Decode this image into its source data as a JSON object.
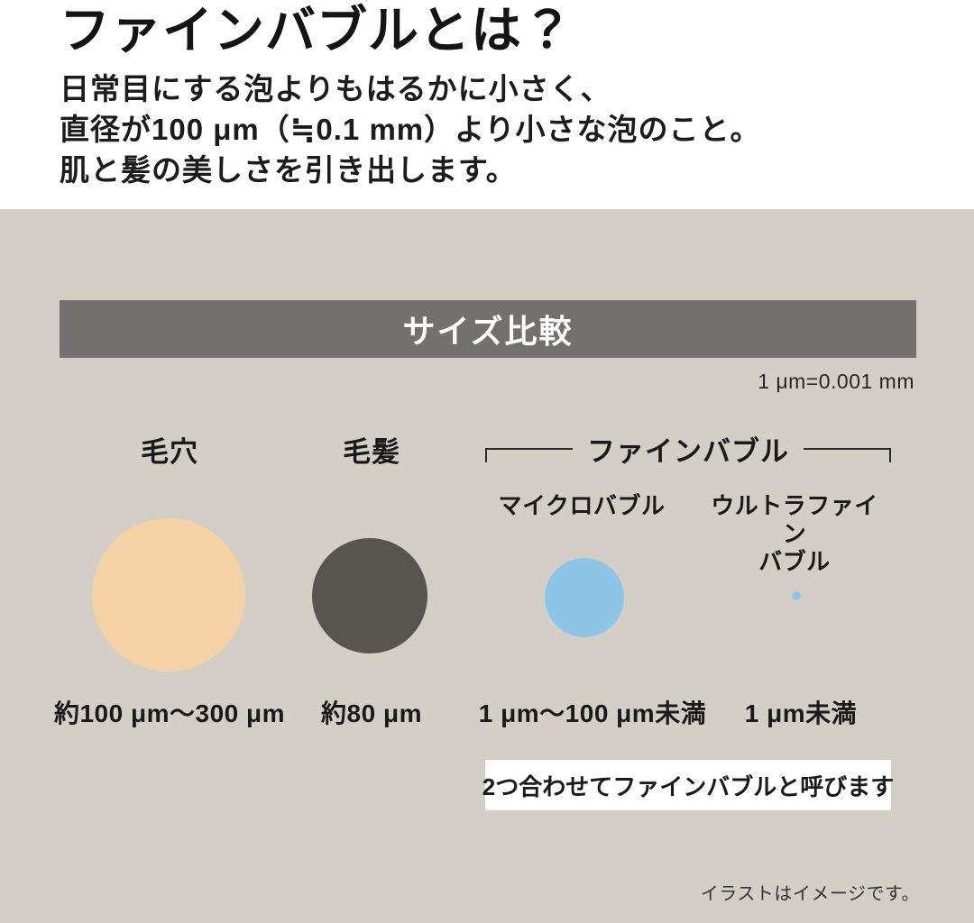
{
  "header": {
    "title": "ファインバブルとは？",
    "description_lines": [
      "日常目にする泡よりもはるかに小さく、",
      "直径が100 μm（≒0.1 mm）より小さな泡のこと。",
      "肌と髪の美しさを引き出します。"
    ]
  },
  "comparison": {
    "section_title": "サイズ比較",
    "unit_note": "1 μm=0.001 mm",
    "fine_bubble_group_label": "ファインバブル",
    "items": [
      {
        "label": "毛穴",
        "size_label": "約100 μm〜300 μm",
        "circle_color": "#f4d2a6",
        "relative_diameter": "largest"
      },
      {
        "label": "毛髪",
        "size_label": "約80 μm",
        "circle_color": "#585450",
        "relative_diameter": "large"
      },
      {
        "label": "マイクロバブル",
        "size_label": "1 μm〜100 μm未満",
        "circle_color": "#8fc6e7",
        "relative_diameter": "medium"
      },
      {
        "label": "ウルトラファイン\nバブル",
        "size_label": "1 μm未満",
        "circle_color": "#8fc6e7",
        "relative_diameter": "tiny"
      }
    ],
    "callout": "2つ合わせてファインバブルと呼びます",
    "footnote": "イラストはイメージです。"
  },
  "colors": {
    "background_gray": "#d3cfc7",
    "title_bar_gray": "#737070",
    "title_bar_text": "#ffffff",
    "pore_circle": "#f4d2a6",
    "hair_circle": "#585450",
    "bubble_blue": "#8fc6e7",
    "text_black": "#1a1a1a",
    "callout_background": "#ffffff"
  }
}
